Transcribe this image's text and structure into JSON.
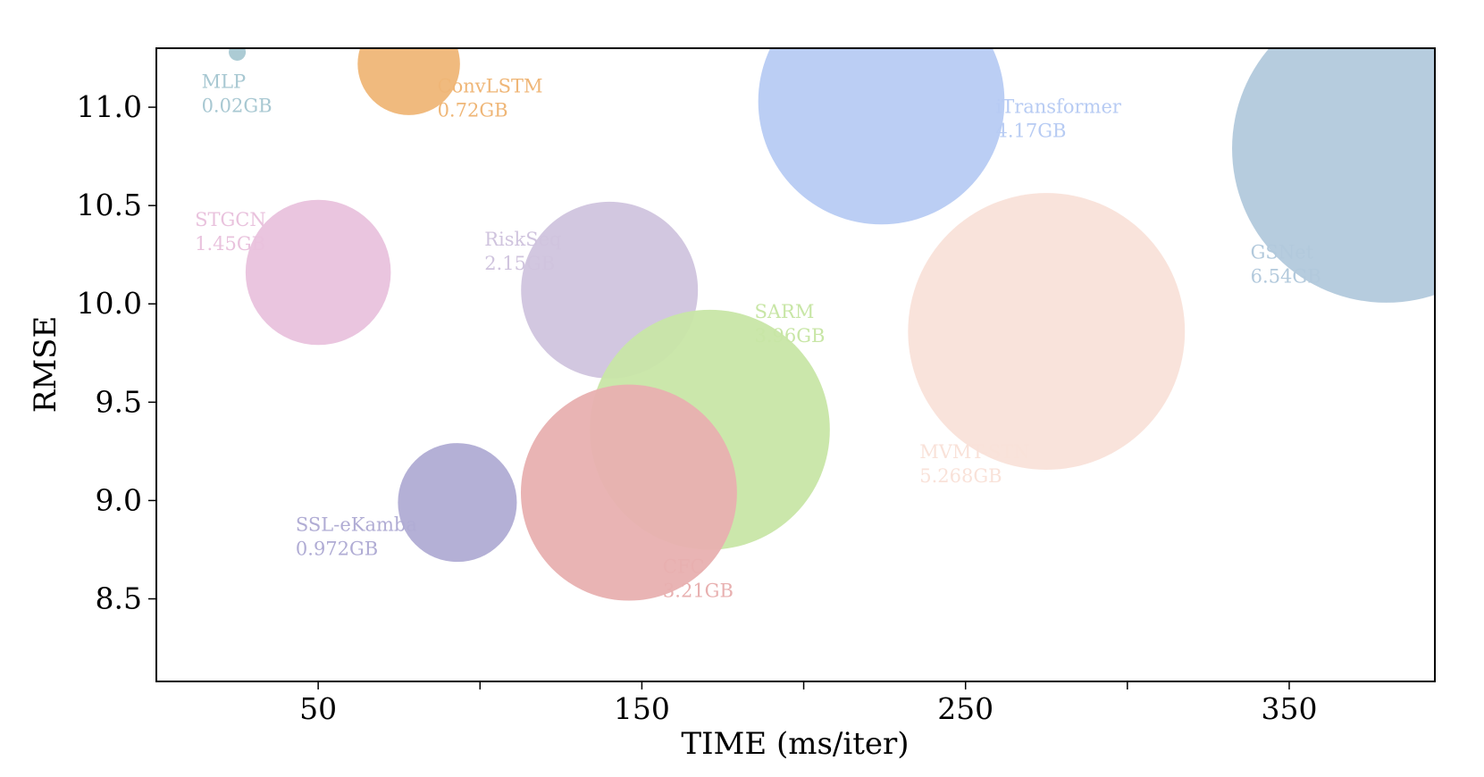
{
  "chart_data": {
    "type": "scatter",
    "title": "",
    "xlabel": "TIME (ms/iter)",
    "ylabel": "RMSE",
    "xlim": [
      0,
      395
    ],
    "ylim": [
      8.08,
      11.3
    ],
    "x_ticks": [
      50,
      100,
      150,
      200,
      250,
      300,
      350
    ],
    "x_tick_labels": [
      "50",
      "",
      "150",
      "",
      "250",
      "",
      "350"
    ],
    "y_ticks": [
      8.5,
      9.0,
      9.5,
      10.0,
      10.5,
      11.0
    ],
    "y_tick_labels": [
      "8.5",
      "9.0",
      "9.5",
      "10.0",
      "10.5",
      "11.0"
    ],
    "grid": false,
    "legend": "none",
    "size_encoding": "memory (GB)",
    "points": [
      {
        "name": "MLP",
        "memory": "0.02GB",
        "gb": 0.02,
        "x": 25,
        "y": 11.28,
        "color": "#a8c8d2"
      },
      {
        "name": "ConvLSTM",
        "memory": "0.72GB",
        "gb": 0.72,
        "x": 78,
        "y": 11.22,
        "color": "#efb677"
      },
      {
        "name": "iTransformer",
        "memory": "4.17GB",
        "gb": 4.17,
        "x": 224,
        "y": 11.03,
        "color": "#b7cbf3"
      },
      {
        "name": "GSNet",
        "memory": "6.54GB",
        "gb": 6.54,
        "x": 380,
        "y": 10.79,
        "color": "#b2c9dc"
      },
      {
        "name": "STGCN",
        "memory": "1.45GB",
        "gb": 1.45,
        "x": 50,
        "y": 10.16,
        "color": "#e9c2dd"
      },
      {
        "name": "RiskSeq",
        "memory": "2.15GB",
        "gb": 2.15,
        "x": 140,
        "y": 10.07,
        "color": "#d0c4de"
      },
      {
        "name": "SARM",
        "memory": "3.96GB",
        "gb": 3.96,
        "x": 171,
        "y": 9.36,
        "color": "#c8e6a6"
      },
      {
        "name": "MVMT-STN",
        "memory": "5.268GB",
        "gb": 5.268,
        "x": 275,
        "y": 9.86,
        "color": "#f9e2d9"
      },
      {
        "name": "SSL-eKamba",
        "memory": "0.972GB",
        "gb": 0.972,
        "x": 93,
        "y": 8.99,
        "color": "#b0acd4"
      },
      {
        "name": "CFC",
        "memory": "3.21GB",
        "gb": 3.21,
        "x": 146,
        "y": 9.04,
        "color": "#e8b0b0"
      }
    ]
  }
}
